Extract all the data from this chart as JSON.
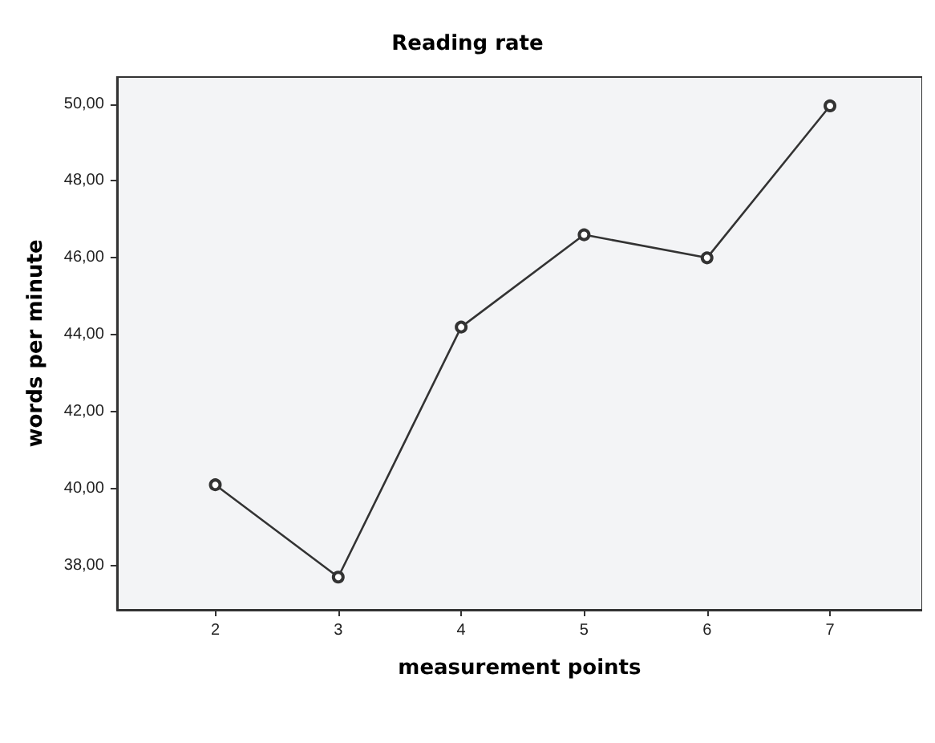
{
  "chart_data": {
    "type": "line",
    "title": "Reading rate",
    "xlabel": "measurement points",
    "ylabel": "words per minute",
    "x": [
      2,
      3,
      4,
      5,
      6,
      7
    ],
    "series": [
      {
        "color": "#333333",
        "values": [
          40.1,
          37.7,
          44.2,
          46.6,
          46.0,
          49.95
        ]
      }
    ],
    "xlim": [
      1.2,
      7.75
    ],
    "xticks": [
      2,
      3,
      4,
      5,
      6,
      7
    ],
    "ylim": [
      36.85,
      50.7
    ],
    "yticks": [
      {
        "value": 38,
        "label": "38,00"
      },
      {
        "value": 40,
        "label": "40,00"
      },
      {
        "value": 42,
        "label": "42,00"
      },
      {
        "value": 44,
        "label": "44,00"
      },
      {
        "value": 46,
        "label": "46,00"
      },
      {
        "value": 48,
        "label": "48,00"
      },
      {
        "value": 50,
        "label": "50,00"
      }
    ],
    "grid": false,
    "marker": "circle",
    "line_style": "solid"
  }
}
